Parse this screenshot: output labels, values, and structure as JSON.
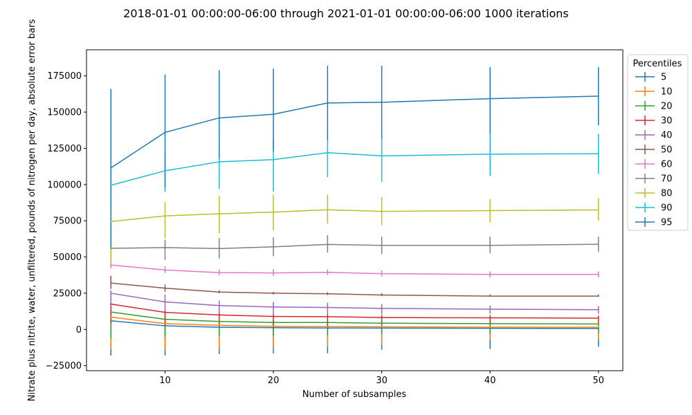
{
  "chart_data": {
    "type": "line",
    "title": "2018-01-01 00:00:00-06:00 through 2021-01-01 00:00:00-06:00 1000 iterations",
    "xlabel": "Number of subsamples",
    "ylabel": "Nitrate plus nitrite, water, unfiltered, pounds of nitrogen per day, absolute error bars",
    "x": [
      5,
      10,
      15,
      20,
      25,
      30,
      40,
      50
    ],
    "xlim": [
      2.75,
      52.25
    ],
    "ylim": [
      -28500,
      193000
    ],
    "xticks": [
      10,
      20,
      30,
      40,
      50
    ],
    "xtick_labels": [
      "10",
      "20",
      "30",
      "40",
      "50"
    ],
    "yticks": [
      -25000,
      0,
      25000,
      50000,
      75000,
      100000,
      125000,
      150000,
      175000
    ],
    "ytick_labels": [
      "−25000",
      "0",
      "25000",
      "50000",
      "75000",
      "100000",
      "125000",
      "150000",
      "175000"
    ],
    "grid": false,
    "legend": {
      "title": "Percentiles",
      "placement": "outside-right-top"
    },
    "series": [
      {
        "name": "5",
        "color": "#1f77b4",
        "values": [
          6000,
          2500,
          1500,
          1200,
          1000,
          900,
          800,
          700
        ],
        "err_low": [
          -18000,
          -18000,
          -17000,
          -16500,
          -16500,
          -14000,
          -13500,
          -12000
        ],
        "err_high": [
          6500,
          3000,
          2500,
          2000,
          1800,
          1600,
          1500,
          1400
        ]
      },
      {
        "name": "10",
        "color": "#ff7f0e",
        "values": [
          8500,
          4000,
          2800,
          2200,
          2000,
          1800,
          1600,
          1500
        ],
        "err_low": [
          -13500,
          -14000,
          -13500,
          -12500,
          -12000,
          -10500,
          -7000,
          -7000
        ],
        "err_high": [
          9000,
          4500,
          3500,
          3000,
          2800,
          2500,
          2200,
          2000
        ]
      },
      {
        "name": "20",
        "color": "#2ca02c",
        "values": [
          12000,
          7000,
          5500,
          4800,
          4800,
          4300,
          4000,
          3800
        ],
        "err_low": [
          -6000,
          -5000,
          -4500,
          -4500,
          -4000,
          -3500,
          -3000,
          -3000
        ],
        "err_high": [
          13000,
          8000,
          6500,
          6000,
          5800,
          5200,
          5000,
          4800
        ]
      },
      {
        "name": "30",
        "color": "#d62728",
        "values": [
          17500,
          11800,
          10000,
          9000,
          8800,
          8200,
          8000,
          7800
        ],
        "err_low": [
          4000,
          3000,
          2500,
          2500,
          2500,
          2800,
          3000,
          3000
        ],
        "err_high": [
          19000,
          13500,
          12000,
          11000,
          10500,
          10000,
          9800,
          9500
        ]
      },
      {
        "name": "40",
        "color": "#9467bd",
        "values": [
          25000,
          19000,
          16500,
          15500,
          15200,
          14500,
          14000,
          13600
        ],
        "err_low": [
          16000,
          12000,
          10500,
          10000,
          10000,
          10500,
          10800,
          11000
        ],
        "err_high": [
          27000,
          24000,
          20000,
          19000,
          18500,
          17500,
          16500,
          16000
        ]
      },
      {
        "name": "50",
        "color": "#8c564b",
        "values": [
          32000,
          28500,
          25800,
          25000,
          24600,
          23800,
          23000,
          23000
        ],
        "err_low": [
          28000,
          26000,
          25000,
          24200,
          23800,
          23000,
          22600,
          22600
        ],
        "err_high": [
          37000,
          31000,
          27000,
          26000,
          25800,
          25000,
          24200,
          24200
        ]
      },
      {
        "name": "60",
        "color": "#e377c2",
        "values": [
          44500,
          41000,
          39200,
          39000,
          39400,
          38500,
          38000,
          38000
        ],
        "err_low": [
          42000,
          39000,
          37500,
          37000,
          37600,
          36500,
          36000,
          36000
        ],
        "err_high": [
          46500,
          43500,
          41500,
          41500,
          41500,
          40800,
          40000,
          40000
        ]
      },
      {
        "name": "70",
        "color": "#7f7f7f",
        "values": [
          56000,
          56500,
          55800,
          57000,
          58700,
          58000,
          58000,
          58800
        ],
        "err_low": [
          46000,
          48000,
          49000,
          50500,
          53000,
          52000,
          52500,
          53500
        ],
        "err_high": [
          62000,
          62000,
          63000,
          63500,
          65000,
          64000,
          64000,
          64000
        ]
      },
      {
        "name": "80",
        "color": "#bcbd22",
        "values": [
          74500,
          78400,
          79800,
          81000,
          82600,
          81500,
          82000,
          82500
        ],
        "err_low": [
          46000,
          63000,
          66500,
          68500,
          73000,
          72000,
          74000,
          75000
        ],
        "err_high": [
          76000,
          88000,
          92000,
          93000,
          93000,
          91500,
          90000,
          90500
        ]
      },
      {
        "name": "90",
        "color": "#17becf",
        "values": [
          99500,
          109500,
          115700,
          117200,
          122000,
          119800,
          121000,
          121300
        ],
        "err_low": [
          88000,
          95000,
          97000,
          95000,
          105000,
          102000,
          106000,
          107500
        ],
        "err_high": [
          101000,
          122000,
          131000,
          132000,
          134000,
          133000,
          136000,
          135000
        ]
      },
      {
        "name": "95",
        "color": "#1f77b4",
        "values": [
          111500,
          136000,
          146000,
          148500,
          156300,
          156800,
          159300,
          161000
        ],
        "err_low": [
          56000,
          98000,
          118000,
          123000,
          131000,
          132000,
          135000,
          141000
        ],
        "err_high": [
          166000,
          176000,
          179000,
          180000,
          182000,
          182000,
          181000,
          181000
        ]
      }
    ]
  }
}
